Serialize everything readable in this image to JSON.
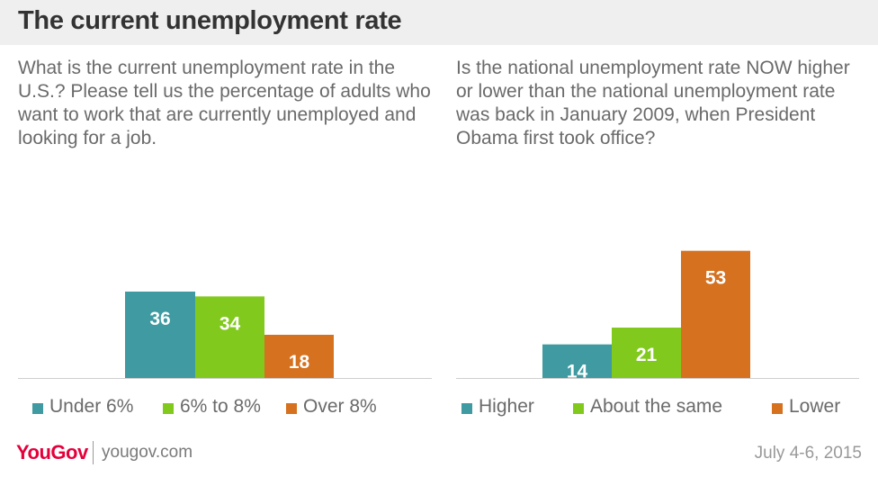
{
  "header": {
    "title": "The current unemployment rate"
  },
  "colors": {
    "teal": "#3f9aa1",
    "green": "#82c91e",
    "orange": "#d5711f"
  },
  "chart_data": [
    {
      "type": "bar",
      "title": "What is the current unemployment rate in the U.S.? Please tell us the percentage of adults who want to work that are currently unemployed and looking for a job.",
      "categories": [
        "Under 6%",
        "6% to 8%",
        "Over 8%"
      ],
      "values": [
        36,
        34,
        18
      ],
      "colors": [
        "#3f9aa1",
        "#82c91e",
        "#d5711f"
      ],
      "legend": [
        "Under 6%",
        "6% to 8%",
        "Over 8%"
      ],
      "legend_position": "bottom",
      "ylim": [
        0,
        60
      ],
      "grid": false
    },
    {
      "type": "bar",
      "title": "Is the national unemployment rate NOW higher or lower than the national unemployment rate was back in January 2009, when President Obama first took office?",
      "categories": [
        "Higher",
        "About the same",
        "Lower"
      ],
      "values": [
        14,
        21,
        53
      ],
      "colors": [
        "#3f9aa1",
        "#82c91e",
        "#d5711f"
      ],
      "legend": [
        "Higher",
        "About the same",
        "Lower"
      ],
      "legend_position": "bottom",
      "ylim": [
        0,
        60
      ],
      "grid": false
    }
  ],
  "footer": {
    "brand": "YouGov",
    "url": "yougov.com",
    "date": "July 4-6, 2015"
  }
}
